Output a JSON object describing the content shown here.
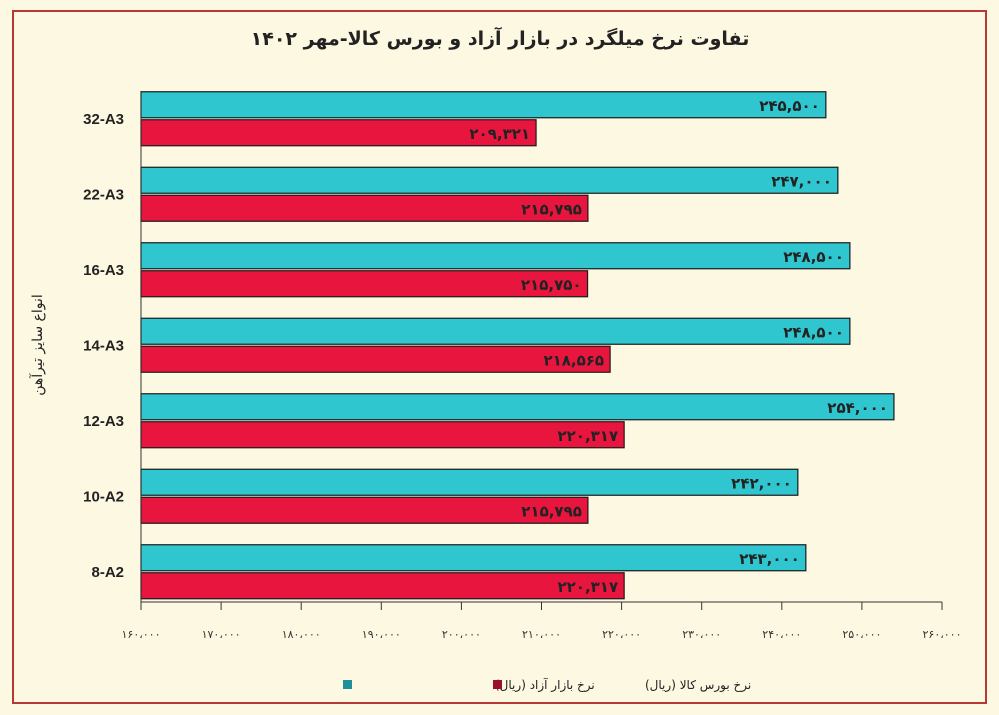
{
  "chart_data": {
    "type": "bar",
    "orientation": "horizontal",
    "title": "تفاوت نرخ میلگرد در بازار آزاد و بورس کالا-مهر ۱۴۰۲",
    "ylabel": "انواع سایز تیرآهن",
    "xlabel": "",
    "categories": [
      "32-A3",
      "22-A3",
      "16-A3",
      "14-A3",
      "12-A3",
      "10-A2",
      "8-A2"
    ],
    "series": [
      {
        "name": "نرخ بازار آزاد (ریال)",
        "color": "#2fc6cf",
        "values": [
          245500,
          247000,
          248500,
          248500,
          254000,
          242000,
          243000
        ],
        "labels": [
          "۲۴۵,۵۰۰",
          "۲۴۷,۰۰۰",
          "۲۴۸,۵۰۰",
          "۲۴۸,۵۰۰",
          "۲۵۴,۰۰۰",
          "۲۴۲,۰۰۰",
          "۲۴۳,۰۰۰"
        ]
      },
      {
        "name": "نرخ بورس کالا (ریال)",
        "color": "#e8163f",
        "values": [
          209321,
          215795,
          215750,
          218565,
          220317,
          215795,
          220317
        ],
        "labels": [
          "۲۰۹,۳۲۱",
          "۲۱۵,۷۹۵",
          "۲۱۵,۷۵۰",
          "۲۱۸,۵۶۵",
          "۲۲۰,۳۱۷",
          "۲۱۵,۷۹۵",
          "۲۲۰,۳۱۷"
        ]
      }
    ],
    "xlim": [
      160000,
      260000
    ],
    "xticks": [
      160000,
      170000,
      180000,
      190000,
      200000,
      210000,
      220000,
      230000,
      240000,
      250000,
      260000
    ],
    "xtick_labels": [
      "۱۶۰،۰۰۰",
      "۱۷۰،۰۰۰",
      "۱۸۰،۰۰۰",
      "۱۹۰،۰۰۰",
      "۲۰۰،۰۰۰",
      "۲۱۰،۰۰۰",
      "۲۲۰،۰۰۰",
      "۲۳۰،۰۰۰",
      "۲۴۰،۰۰۰",
      "۲۵۰،۰۰۰",
      "۲۶۰،۰۰۰"
    ],
    "grid": false,
    "legend_placement": "bottom",
    "frame_color": "#b53a36"
  }
}
